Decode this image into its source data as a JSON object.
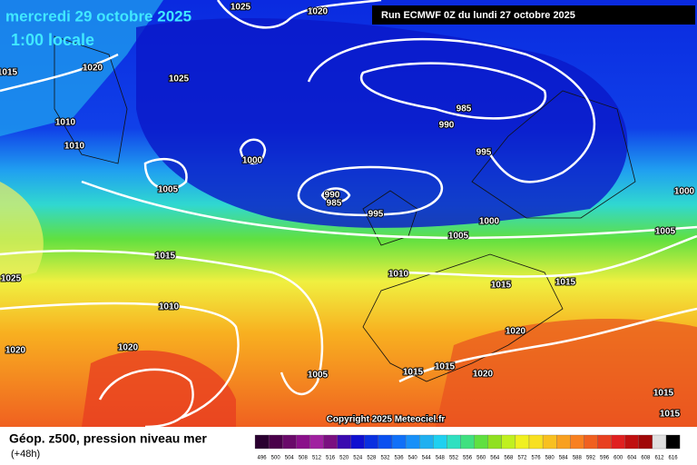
{
  "header": {
    "title": "mercredi 29 octobre 2025",
    "subtitle": "1:00 locale",
    "run": "Run ECMWF 0Z du lundi 27 octobre 2025"
  },
  "isobar_labels": [
    1025,
    1020,
    1015,
    1020,
    1025,
    1010,
    1010,
    985,
    990,
    995,
    1000,
    1005,
    990,
    985,
    995,
    1000,
    1000,
    1005,
    1005,
    1015,
    1025,
    1010,
    1015,
    1015,
    1010,
    1020,
    1020,
    1020,
    1005,
    1015,
    1015,
    1020,
    1015,
    1015
  ],
  "copyright": "Copyright 2025 Meteociel.fr",
  "footer": {
    "title": "Géop. z500, pression niveau mer",
    "lead": "(+48h)"
  },
  "scale": {
    "values": [
      496,
      500,
      504,
      508,
      512,
      516,
      520,
      524,
      528,
      532,
      536,
      540,
      544,
      548,
      552,
      556,
      560,
      564,
      568,
      572,
      576,
      580,
      584,
      588,
      592,
      596,
      600,
      604,
      608,
      612,
      616
    ],
    "colors": [
      "#2a0030",
      "#4a004a",
      "#6a0a6a",
      "#8a108a",
      "#a020a0",
      "#7a1080",
      "#3a0ab0",
      "#1010d0",
      "#0a30e0",
      "#0a50f0",
      "#1070f8",
      "#1890f8",
      "#20b0f0",
      "#20d0f0",
      "#30e0c0",
      "#40e080",
      "#60e040",
      "#90e020",
      "#c0f020",
      "#f0f020",
      "#f8e020",
      "#f8c020",
      "#f8a020",
      "#f88020",
      "#f06020",
      "#e84020",
      "#e02020",
      "#c01010",
      "#a00808",
      "#e0e0e0",
      "#000000"
    ]
  }
}
